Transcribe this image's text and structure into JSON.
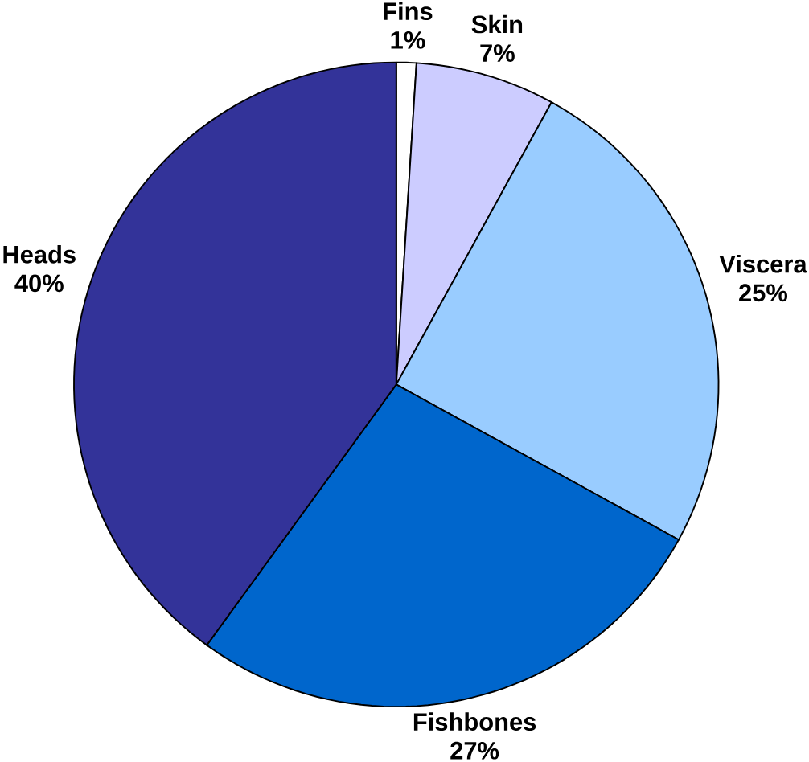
{
  "chart_data": {
    "type": "pie",
    "categories": [
      "Fins",
      "Skin",
      "Viscera",
      "Fishbones",
      "Heads"
    ],
    "values": [
      1,
      7,
      25,
      27,
      40
    ],
    "value_labels": [
      "1%",
      "7%",
      "25%",
      "27%",
      "40%"
    ],
    "colors": [
      "#ffffff",
      "#ccccff",
      "#99ccff",
      "#0066cc",
      "#333399"
    ],
    "legend": false
  }
}
